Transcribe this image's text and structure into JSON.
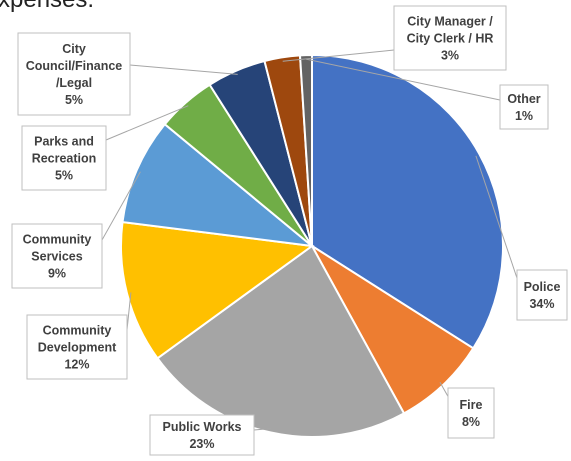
{
  "page_title_fragment": "xpenses.",
  "chart_data": {
    "type": "pie",
    "title": "",
    "slices": [
      {
        "lines": [
          "Police"
        ],
        "pct_label": "34%",
        "value": 34,
        "color": "#4472C4"
      },
      {
        "lines": [
          "Fire"
        ],
        "pct_label": "8%",
        "value": 8,
        "color": "#ED7D31"
      },
      {
        "lines": [
          "Public Works"
        ],
        "pct_label": "23%",
        "value": 23,
        "color": "#A5A5A5"
      },
      {
        "lines": [
          "Community",
          "Development"
        ],
        "pct_label": "12%",
        "value": 12,
        "color": "#FFC000"
      },
      {
        "lines": [
          "Community",
          "Services"
        ],
        "pct_label": "9%",
        "value": 9,
        "color": "#5B9BD5"
      },
      {
        "lines": [
          "Parks and",
          "Recreation"
        ],
        "pct_label": "5%",
        "value": 5,
        "color": "#70AD47"
      },
      {
        "lines": [
          "City",
          "Council/Finance",
          "/Legal"
        ],
        "pct_label": "5%",
        "value": 5,
        "color": "#264478"
      },
      {
        "lines": [
          "City Manager /",
          "City Clerk / HR"
        ],
        "pct_label": "3%",
        "value": 3,
        "color": "#9E480E"
      },
      {
        "lines": [
          "Other"
        ],
        "pct_label": "1%",
        "value": 1,
        "color": "#636363"
      }
    ]
  }
}
